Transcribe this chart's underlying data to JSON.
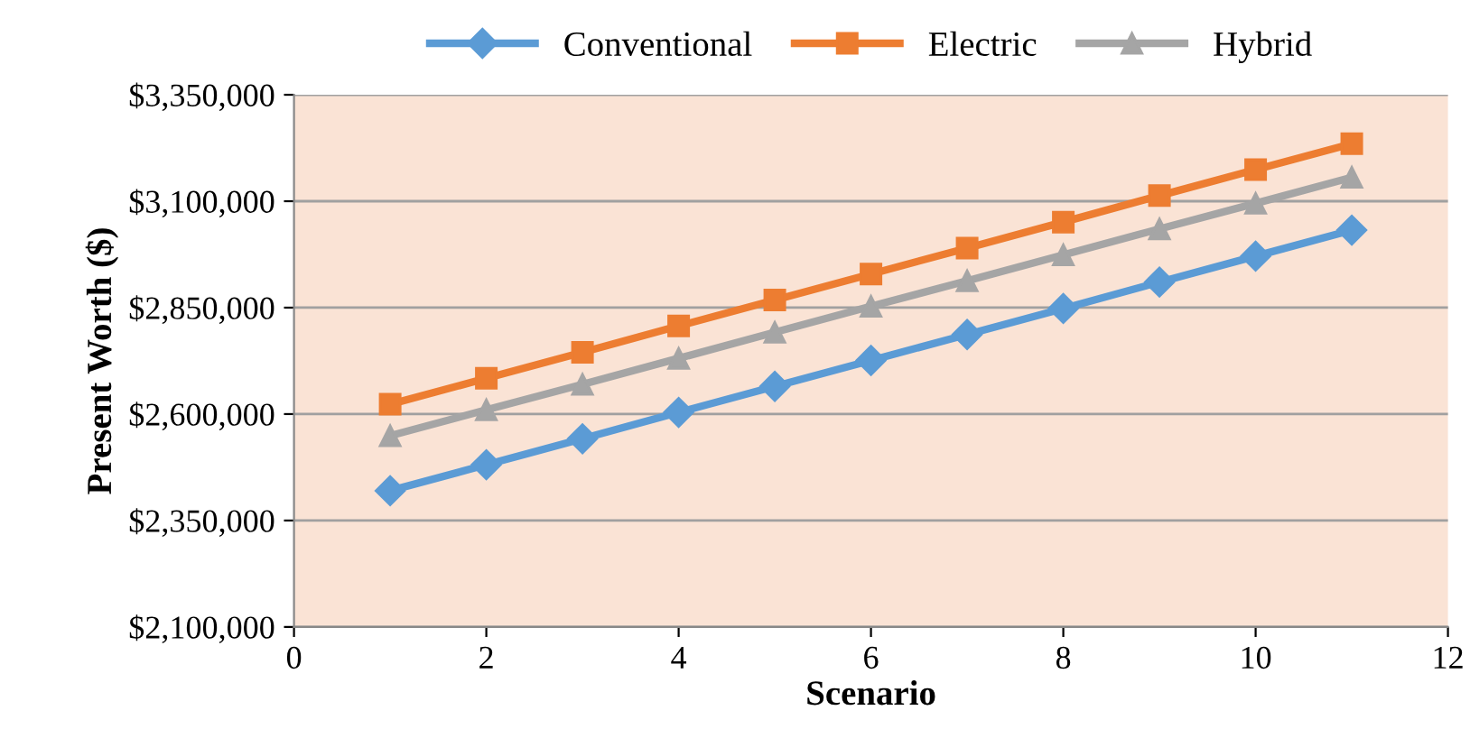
{
  "chart_data": {
    "type": "line",
    "xlabel": "Scenario",
    "ylabel": "Present Worth ($)",
    "x": [
      1,
      2,
      3,
      4,
      5,
      6,
      7,
      8,
      9,
      10,
      11
    ],
    "series": [
      {
        "name": "Conventional",
        "color": "#5b9bd5",
        "marker": "diamond",
        "values": [
          2420000,
          2481000,
          2542000,
          2604000,
          2665000,
          2726000,
          2787000,
          2848000,
          2910000,
          2971000,
          3032000
        ]
      },
      {
        "name": "Electric",
        "color": "#ed7d31",
        "marker": "square",
        "values": [
          2623000,
          2684000,
          2745000,
          2807000,
          2868000,
          2929000,
          2990000,
          3051000,
          3113000,
          3174000,
          3235000
        ]
      },
      {
        "name": "Hybrid",
        "color": "#a5a5a5",
        "marker": "triangle",
        "values": [
          2549000,
          2610000,
          2670000,
          2731000,
          2792000,
          2853000,
          2913000,
          2974000,
          3035000,
          3095000,
          3156000
        ]
      }
    ],
    "xlim": [
      0,
      12
    ],
    "xticks": [
      0,
      2,
      4,
      6,
      8,
      10,
      12
    ],
    "ylim": [
      2100000,
      3350000
    ],
    "yticks": [
      {
        "value": 2100000,
        "label": "$2,100,000"
      },
      {
        "value": 2350000,
        "label": "$2,350,000"
      },
      {
        "value": 2600000,
        "label": "$2,600,000"
      },
      {
        "value": 2850000,
        "label": "$2,850,000"
      },
      {
        "value": 3100000,
        "label": "$3,100,000"
      },
      {
        "value": 3350000,
        "label": "$3,350,000"
      }
    ],
    "grid": "y",
    "legend": "top",
    "line_style": "solid"
  }
}
